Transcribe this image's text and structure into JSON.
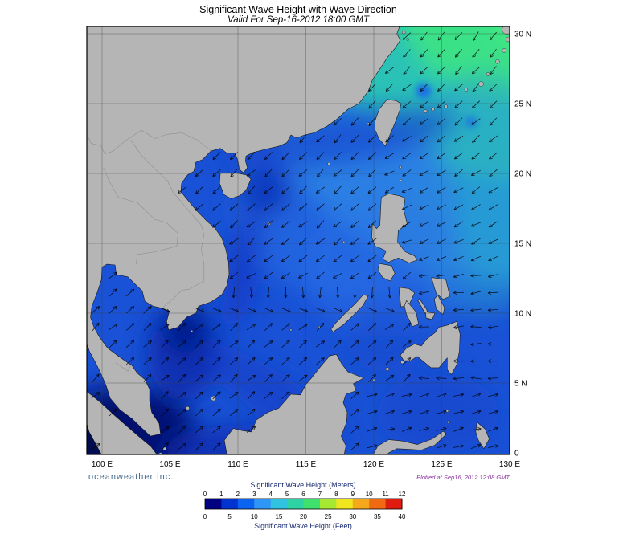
{
  "title": "Significant Wave Height with Wave Direction",
  "subtitle": "Valid For Sep-16-2012 18:00 GMT",
  "branding": "oceanweather inc.",
  "plotted_note": "Plotted at Sep16, 2012 12:08 GMT",
  "map": {
    "lat_labels": [
      "30 N",
      "25 N",
      "20 N",
      "15 N",
      "10 N",
      "5 N",
      "0"
    ],
    "lat_values": [
      30,
      25,
      20,
      15,
      10,
      5,
      0
    ],
    "lon_labels": [
      "100 E",
      "105 E",
      "110 E",
      "115 E",
      "120 E",
      "125 E",
      "130 E"
    ],
    "lon_values": [
      100,
      105,
      110,
      115,
      120,
      125,
      130
    ]
  },
  "legend": {
    "meters_title": "Significant Wave Height (Meters)",
    "feet_title": "Significant Wave Height (Feet)",
    "meters_ticks": [
      "0",
      "1",
      "2",
      "3",
      "4",
      "5",
      "6",
      "7",
      "8",
      "9",
      "10",
      "11",
      "12"
    ],
    "feet_ticks": [
      "0",
      "5",
      "10",
      "15",
      "20",
      "25",
      "30",
      "35",
      "40"
    ],
    "colors": [
      "#000082",
      "#0033cf",
      "#0a64f0",
      "#2f96f5",
      "#30c3e0",
      "#2ed3a4",
      "#3fe06b",
      "#a6e832",
      "#f0e61e",
      "#f5a81c",
      "#f06a14",
      "#e01c10"
    ]
  },
  "colors": {
    "ocean_base": "#1952d6",
    "land": "#b5b5b5",
    "branding_text": "#4a6f8f",
    "plotted_text": "#8b2fa0",
    "high_wave_green": "#3be385"
  }
}
